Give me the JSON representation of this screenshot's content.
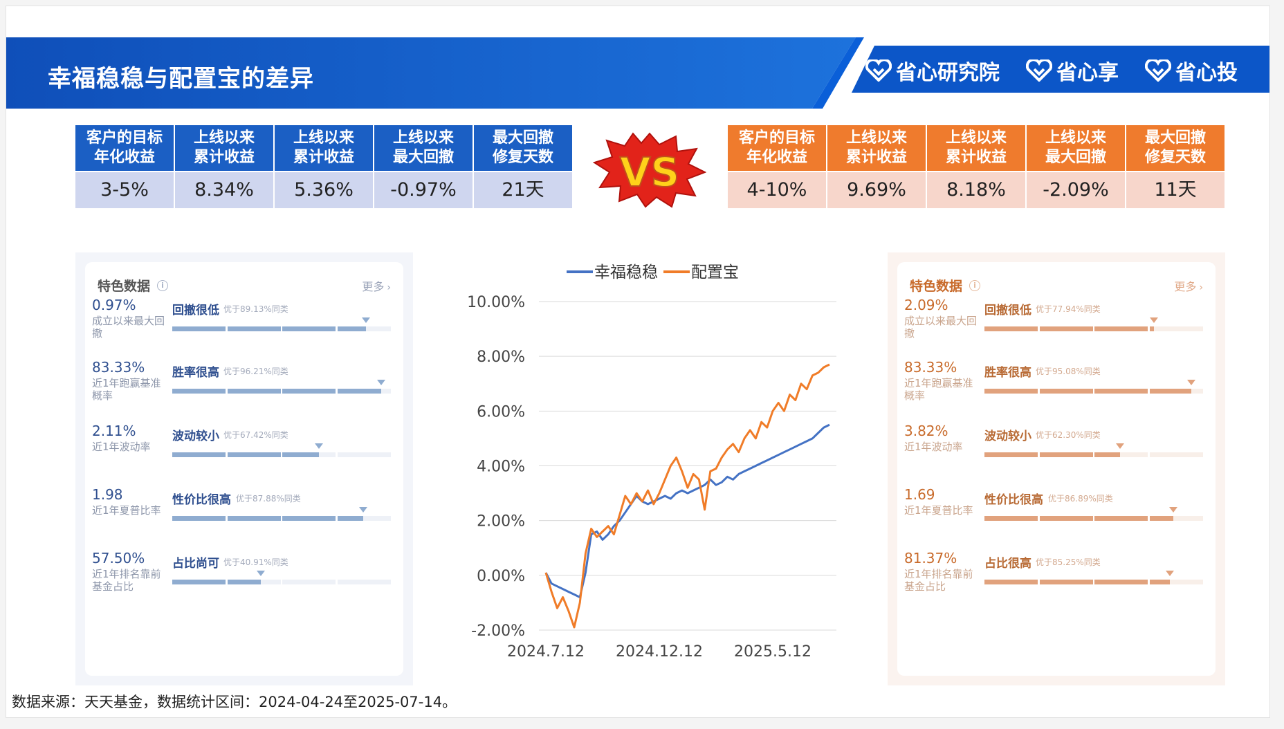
{
  "header": {
    "title": "幸福稳稳与配置宝的差异",
    "brands": [
      "省心研究院",
      "省心享",
      "省心投"
    ]
  },
  "comparison": {
    "columns": [
      "客户的目标\n年化收益",
      "上线以来\n累计收益",
      "上线以来\n累计收益",
      "上线以来\n最大回撤",
      "最大回撤\n修复天数"
    ],
    "left_values": [
      "3-5%",
      "8.34%",
      "5.36%",
      "-0.97%",
      "21天"
    ],
    "right_values": [
      "4-10%",
      "9.69%",
      "8.18%",
      "-2.09%",
      "11天"
    ],
    "vs_label": "VS"
  },
  "left_card": {
    "title": "特色数据",
    "more": "更多",
    "items": [
      {
        "value": "0.97%",
        "desc": "成立以来最大回撤",
        "tag": "回撤很低",
        "beat": "优于89.13%同类",
        "pct": 89.13
      },
      {
        "value": "83.33%",
        "desc": "近1年跑赢基准概率",
        "tag": "胜率很高",
        "beat": "优于96.21%同类",
        "pct": 96.21
      },
      {
        "value": "2.11%",
        "desc": "近1年波动率",
        "tag": "波动较小",
        "beat": "优于67.42%同类",
        "pct": 67.42
      },
      {
        "value": "1.98",
        "desc": "近1年夏普比率",
        "tag": "性价比很高",
        "beat": "优于87.88%同类",
        "pct": 87.88
      },
      {
        "value": "57.50%",
        "desc": "近1年排名靠前基金占比",
        "tag": "占比尚可",
        "beat": "优于40.91%同类",
        "pct": 40.91
      }
    ]
  },
  "right_card": {
    "title": "特色数据",
    "more": "更多",
    "items": [
      {
        "value": "2.09%",
        "desc": "成立以来最大回撤",
        "tag": "回撤很低",
        "beat": "优于77.94%同类",
        "pct": 77.94
      },
      {
        "value": "83.33%",
        "desc": "近1年跑赢基准概率",
        "tag": "胜率很高",
        "beat": "优于95.08%同类",
        "pct": 95.08
      },
      {
        "value": "3.82%",
        "desc": "近1年波动率",
        "tag": "波动较小",
        "beat": "优于62.30%同类",
        "pct": 62.3
      },
      {
        "value": "1.69",
        "desc": "近1年夏普比率",
        "tag": "性价比很高",
        "beat": "优于86.89%同类",
        "pct": 86.89
      },
      {
        "value": "81.37%",
        "desc": "近1年排名靠前基金占比",
        "tag": "占比很高",
        "beat": "优于85.25%同类",
        "pct": 85.25
      }
    ]
  },
  "chart_data": {
    "type": "line",
    "x_ticks": [
      "2024.7.12",
      "2024.12.12",
      "2025.5.12"
    ],
    "y_ticks": [
      "10.00%",
      "8.00%",
      "6.00%",
      "4.00%",
      "2.00%",
      "0.00%",
      "-2.00%"
    ],
    "ylim": [
      -2,
      10
    ],
    "legend_position": "top",
    "series": [
      {
        "name": "幸福稳稳",
        "color": "#4472c4",
        "x": [
          0,
          2,
          4,
          6,
          8,
          10,
          12,
          14,
          16,
          18,
          20,
          22,
          24,
          26,
          28,
          30,
          32,
          34,
          36,
          38,
          40,
          42,
          44,
          46,
          48,
          50,
          52,
          54,
          56,
          58,
          60,
          62,
          64,
          66,
          68,
          70,
          72,
          74,
          76,
          78,
          80,
          82,
          84,
          86,
          88,
          90,
          92,
          94,
          96,
          98,
          100
        ],
        "y": [
          0.1,
          -0.3,
          -0.4,
          -0.5,
          -0.6,
          -0.7,
          -0.8,
          0.1,
          1.5,
          1.6,
          1.3,
          1.5,
          1.8,
          2.0,
          2.3,
          2.6,
          2.9,
          2.7,
          2.6,
          2.7,
          2.8,
          2.9,
          2.8,
          3.0,
          3.1,
          3.0,
          3.1,
          3.2,
          3.3,
          3.5,
          3.3,
          3.4,
          3.6,
          3.5,
          3.7,
          3.8,
          3.9,
          4.0,
          4.1,
          4.2,
          4.3,
          4.4,
          4.5,
          4.6,
          4.7,
          4.8,
          4.9,
          5.0,
          5.2,
          5.4,
          5.5
        ]
      },
      {
        "name": "配置宝",
        "color": "#f07c28",
        "x": [
          0,
          2,
          4,
          6,
          8,
          10,
          12,
          14,
          16,
          18,
          20,
          22,
          24,
          26,
          28,
          30,
          32,
          34,
          36,
          38,
          40,
          42,
          44,
          46,
          48,
          50,
          52,
          54,
          56,
          58,
          60,
          62,
          64,
          66,
          68,
          70,
          72,
          74,
          76,
          78,
          80,
          82,
          84,
          86,
          88,
          90,
          92,
          94,
          96,
          98,
          100
        ],
        "y": [
          0.1,
          -0.6,
          -1.2,
          -0.8,
          -1.3,
          -1.9,
          -1.0,
          0.8,
          1.7,
          1.4,
          1.6,
          1.8,
          1.5,
          2.2,
          2.9,
          2.6,
          3.0,
          2.7,
          3.1,
          2.6,
          3.0,
          3.5,
          4.0,
          4.3,
          3.8,
          3.2,
          3.7,
          3.5,
          2.4,
          3.8,
          3.9,
          4.3,
          4.6,
          4.8,
          4.5,
          5.0,
          5.3,
          5.0,
          5.6,
          5.4,
          6.0,
          6.3,
          6.0,
          6.6,
          6.4,
          7.0,
          6.8,
          7.3,
          7.4,
          7.6,
          7.7
        ]
      }
    ]
  },
  "footer": {
    "source": "数据来源：天天基金，数据统计区间：2024-04-24至2025-07-14。"
  }
}
